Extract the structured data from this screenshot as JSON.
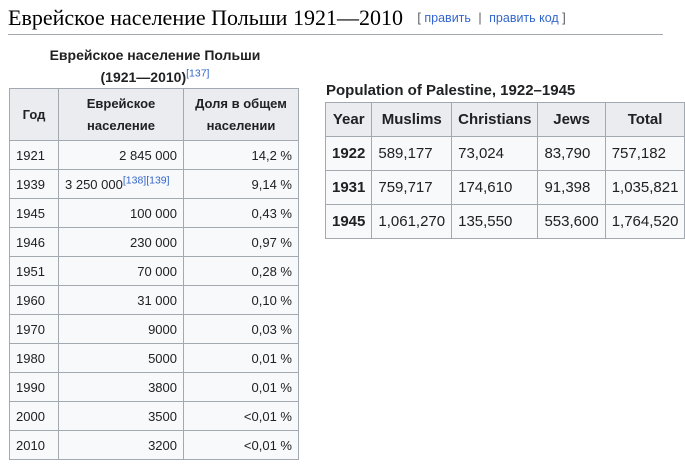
{
  "heading": {
    "title": "Еврейское население Польши 1921—2010",
    "edit_open": "[",
    "edit_label": "править",
    "edit_divider": "|",
    "edit_code_label": "править код",
    "edit_close": "]"
  },
  "poland_table": {
    "caption_line1": "Еврейское население Польши",
    "caption_line2": "(1921—2010)",
    "caption_ref": "[137]",
    "headers": [
      "Год",
      "Еврейское население",
      "Доля в общем населении"
    ],
    "rows": [
      {
        "year": "1921",
        "population": "2 845 000",
        "refs": "",
        "share": "14,2 %"
      },
      {
        "year": "1939",
        "population": "3 250 000",
        "refs": "[138][139]",
        "share": "9,14 %"
      },
      {
        "year": "1945",
        "population": "100 000",
        "refs": "",
        "share": "0,43 %"
      },
      {
        "year": "1946",
        "population": "230 000",
        "refs": "",
        "share": "0,97 %"
      },
      {
        "year": "1951",
        "population": "70 000",
        "refs": "",
        "share": "0,28 %"
      },
      {
        "year": "1960",
        "population": "31 000",
        "refs": "",
        "share": "0,10 %"
      },
      {
        "year": "1970",
        "population": "9000",
        "refs": "",
        "share": "0,03 %"
      },
      {
        "year": "1980",
        "population": "5000",
        "refs": "",
        "share": "0,01 %"
      },
      {
        "year": "1990",
        "population": "3800",
        "refs": "",
        "share": "0,01 %"
      },
      {
        "year": "2000",
        "population": "3500",
        "refs": "",
        "share": "<0,01 %"
      },
      {
        "year": "2010",
        "population": "3200",
        "refs": "",
        "share": "<0,01 %"
      }
    ]
  },
  "palestine_table": {
    "caption": "Population of Palestine, 1922–1945",
    "headers": [
      "Year",
      "Muslims",
      "Christians",
      "Jews",
      "Total"
    ],
    "rows": [
      {
        "year": "1922",
        "muslims": "589,177",
        "christians": "73,024",
        "jews": "83,790",
        "total": "757,182"
      },
      {
        "year": "1931",
        "muslims": "759,717",
        "christians": "174,610",
        "jews": "91,398",
        "total": "1,035,821"
      },
      {
        "year": "1945",
        "muslims": "1,061,270",
        "christians": "135,550",
        "jews": "553,600",
        "total": "1,764,520"
      }
    ]
  }
}
